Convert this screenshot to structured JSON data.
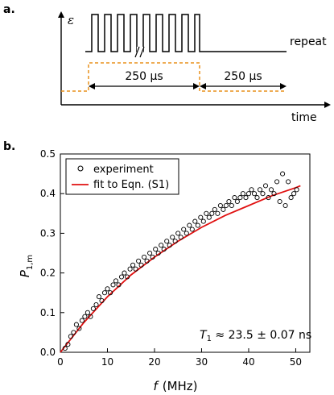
{
  "panel_a": {
    "label": "a.",
    "y_symbol": "ε",
    "repeat_label": "repeat",
    "x_label": "time",
    "interval1_label": "250 μs",
    "interval2_label": "250 μs",
    "colors": {
      "trace": "#000000",
      "gate": "#e8901c"
    }
  },
  "panel_b": {
    "label": "b.",
    "annotation_symbol": "T",
    "annotation_sub": "1",
    "annotation_value": " ≈ 23.5 ± 0.07 ns",
    "colors": {
      "experiment": "#000000",
      "fit": "#e01010"
    }
  },
  "chart_data": {
    "type": "scatter",
    "title": "",
    "xlabel_symbol": "f",
    "xlabel_unit": "(MHz)",
    "ylabel_symbol": "P",
    "ylabel_sub": "1,m",
    "xlim": [
      0,
      53
    ],
    "ylim": [
      0,
      0.5
    ],
    "x_ticks": [
      "0",
      "10",
      "20",
      "30",
      "40",
      "50"
    ],
    "y_ticks": [
      "0.0",
      "0.1",
      "0.2",
      "0.3",
      "0.4",
      "0.5"
    ],
    "legend_position": "top-left",
    "series": [
      {
        "name": "experiment",
        "type": "scatter",
        "x": [
          1.0,
          1.6,
          2.2,
          2.8,
          3.4,
          4.0,
          4.6,
          5.2,
          5.8,
          6.4,
          7.0,
          7.6,
          8.2,
          8.8,
          9.4,
          10.0,
          10.6,
          11.2,
          11.8,
          12.4,
          13.0,
          13.6,
          14.2,
          14.8,
          15.4,
          16.0,
          16.6,
          17.2,
          17.8,
          18.4,
          19.0,
          19.6,
          20.2,
          20.8,
          21.4,
          22.0,
          22.6,
          23.2,
          23.8,
          24.4,
          25.0,
          25.6,
          26.2,
          26.8,
          27.4,
          28.0,
          28.6,
          29.2,
          29.8,
          30.4,
          31.0,
          31.6,
          32.2,
          32.8,
          33.4,
          34.0,
          34.6,
          35.2,
          35.8,
          36.4,
          37.0,
          37.6,
          38.2,
          38.8,
          39.4,
          40.0,
          40.6,
          41.2,
          41.8,
          42.4,
          43.0,
          43.6,
          44.2,
          44.8,
          45.4,
          46.0,
          46.6,
          47.2,
          47.8,
          48.4,
          49.0,
          49.6,
          50.2
        ],
        "y": [
          0.01,
          0.02,
          0.04,
          0.05,
          0.07,
          0.06,
          0.08,
          0.09,
          0.1,
          0.09,
          0.11,
          0.12,
          0.14,
          0.13,
          0.15,
          0.16,
          0.15,
          0.17,
          0.18,
          0.17,
          0.19,
          0.2,
          0.19,
          0.21,
          0.22,
          0.21,
          0.23,
          0.22,
          0.24,
          0.23,
          0.25,
          0.24,
          0.26,
          0.25,
          0.27,
          0.26,
          0.28,
          0.27,
          0.29,
          0.28,
          0.3,
          0.29,
          0.31,
          0.3,
          0.32,
          0.31,
          0.33,
          0.32,
          0.34,
          0.33,
          0.35,
          0.34,
          0.35,
          0.36,
          0.35,
          0.37,
          0.36,
          0.37,
          0.38,
          0.37,
          0.39,
          0.38,
          0.39,
          0.4,
          0.39,
          0.4,
          0.41,
          0.4,
          0.39,
          0.41,
          0.4,
          0.42,
          0.39,
          0.41,
          0.4,
          0.43,
          0.38,
          0.45,
          0.37,
          0.43,
          0.39,
          0.4,
          0.41
        ]
      },
      {
        "name": "fit to Eqn. (S1)",
        "type": "line",
        "x": [
          0,
          5,
          10,
          15,
          20,
          25,
          30,
          35,
          40,
          45,
          50,
          51
        ],
        "y": [
          0.0,
          0.075,
          0.14,
          0.195,
          0.24,
          0.28,
          0.315,
          0.345,
          0.37,
          0.395,
          0.415,
          0.42
        ]
      }
    ]
  }
}
